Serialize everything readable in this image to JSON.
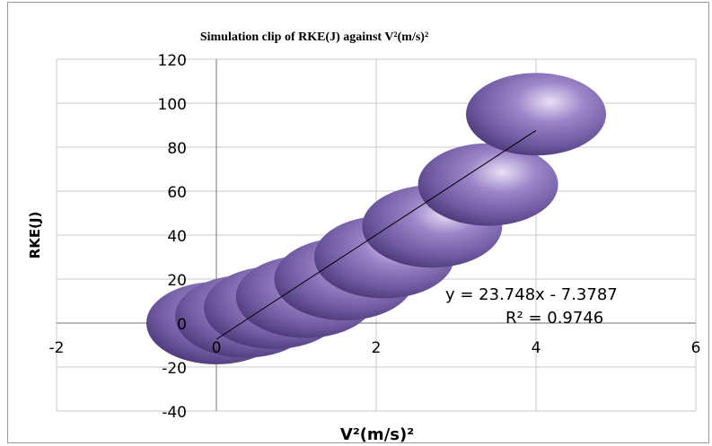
{
  "chart_data": {
    "type": "scatter",
    "title": "Simulation clip of RKE(J) against V²(m/s)²",
    "xlabel": "V²(m/s)²",
    "ylabel": "RKE(J)",
    "xlim": [
      -2,
      6
    ],
    "ylim": [
      -40,
      120
    ],
    "x_ticks": [
      "-2",
      "0",
      "2",
      "4",
      "6"
    ],
    "y_ticks": [
      "120",
      "100",
      "80",
      "60",
      "40",
      "20",
      "0",
      "-20",
      "-40"
    ],
    "grid": true,
    "marker_style": "bubble",
    "series": [
      {
        "x": [
          0,
          0.36,
          0.72,
          1.12,
          1.6,
          2.1,
          2.7,
          3.4,
          4.0
        ],
        "y": [
          0,
          3,
          7,
          12,
          20,
          30,
          44,
          63,
          95
        ]
      }
    ],
    "trendline": {
      "x_range": [
        0,
        4
      ],
      "equation": "y = 23.748x - 7.3787",
      "r_squared": "R² = 0.9746"
    },
    "colors": {
      "marker": "#8a6fb8",
      "marker_dark": "#4d3a78",
      "trendline": "#000000",
      "grid": "#c8c8c8"
    }
  }
}
